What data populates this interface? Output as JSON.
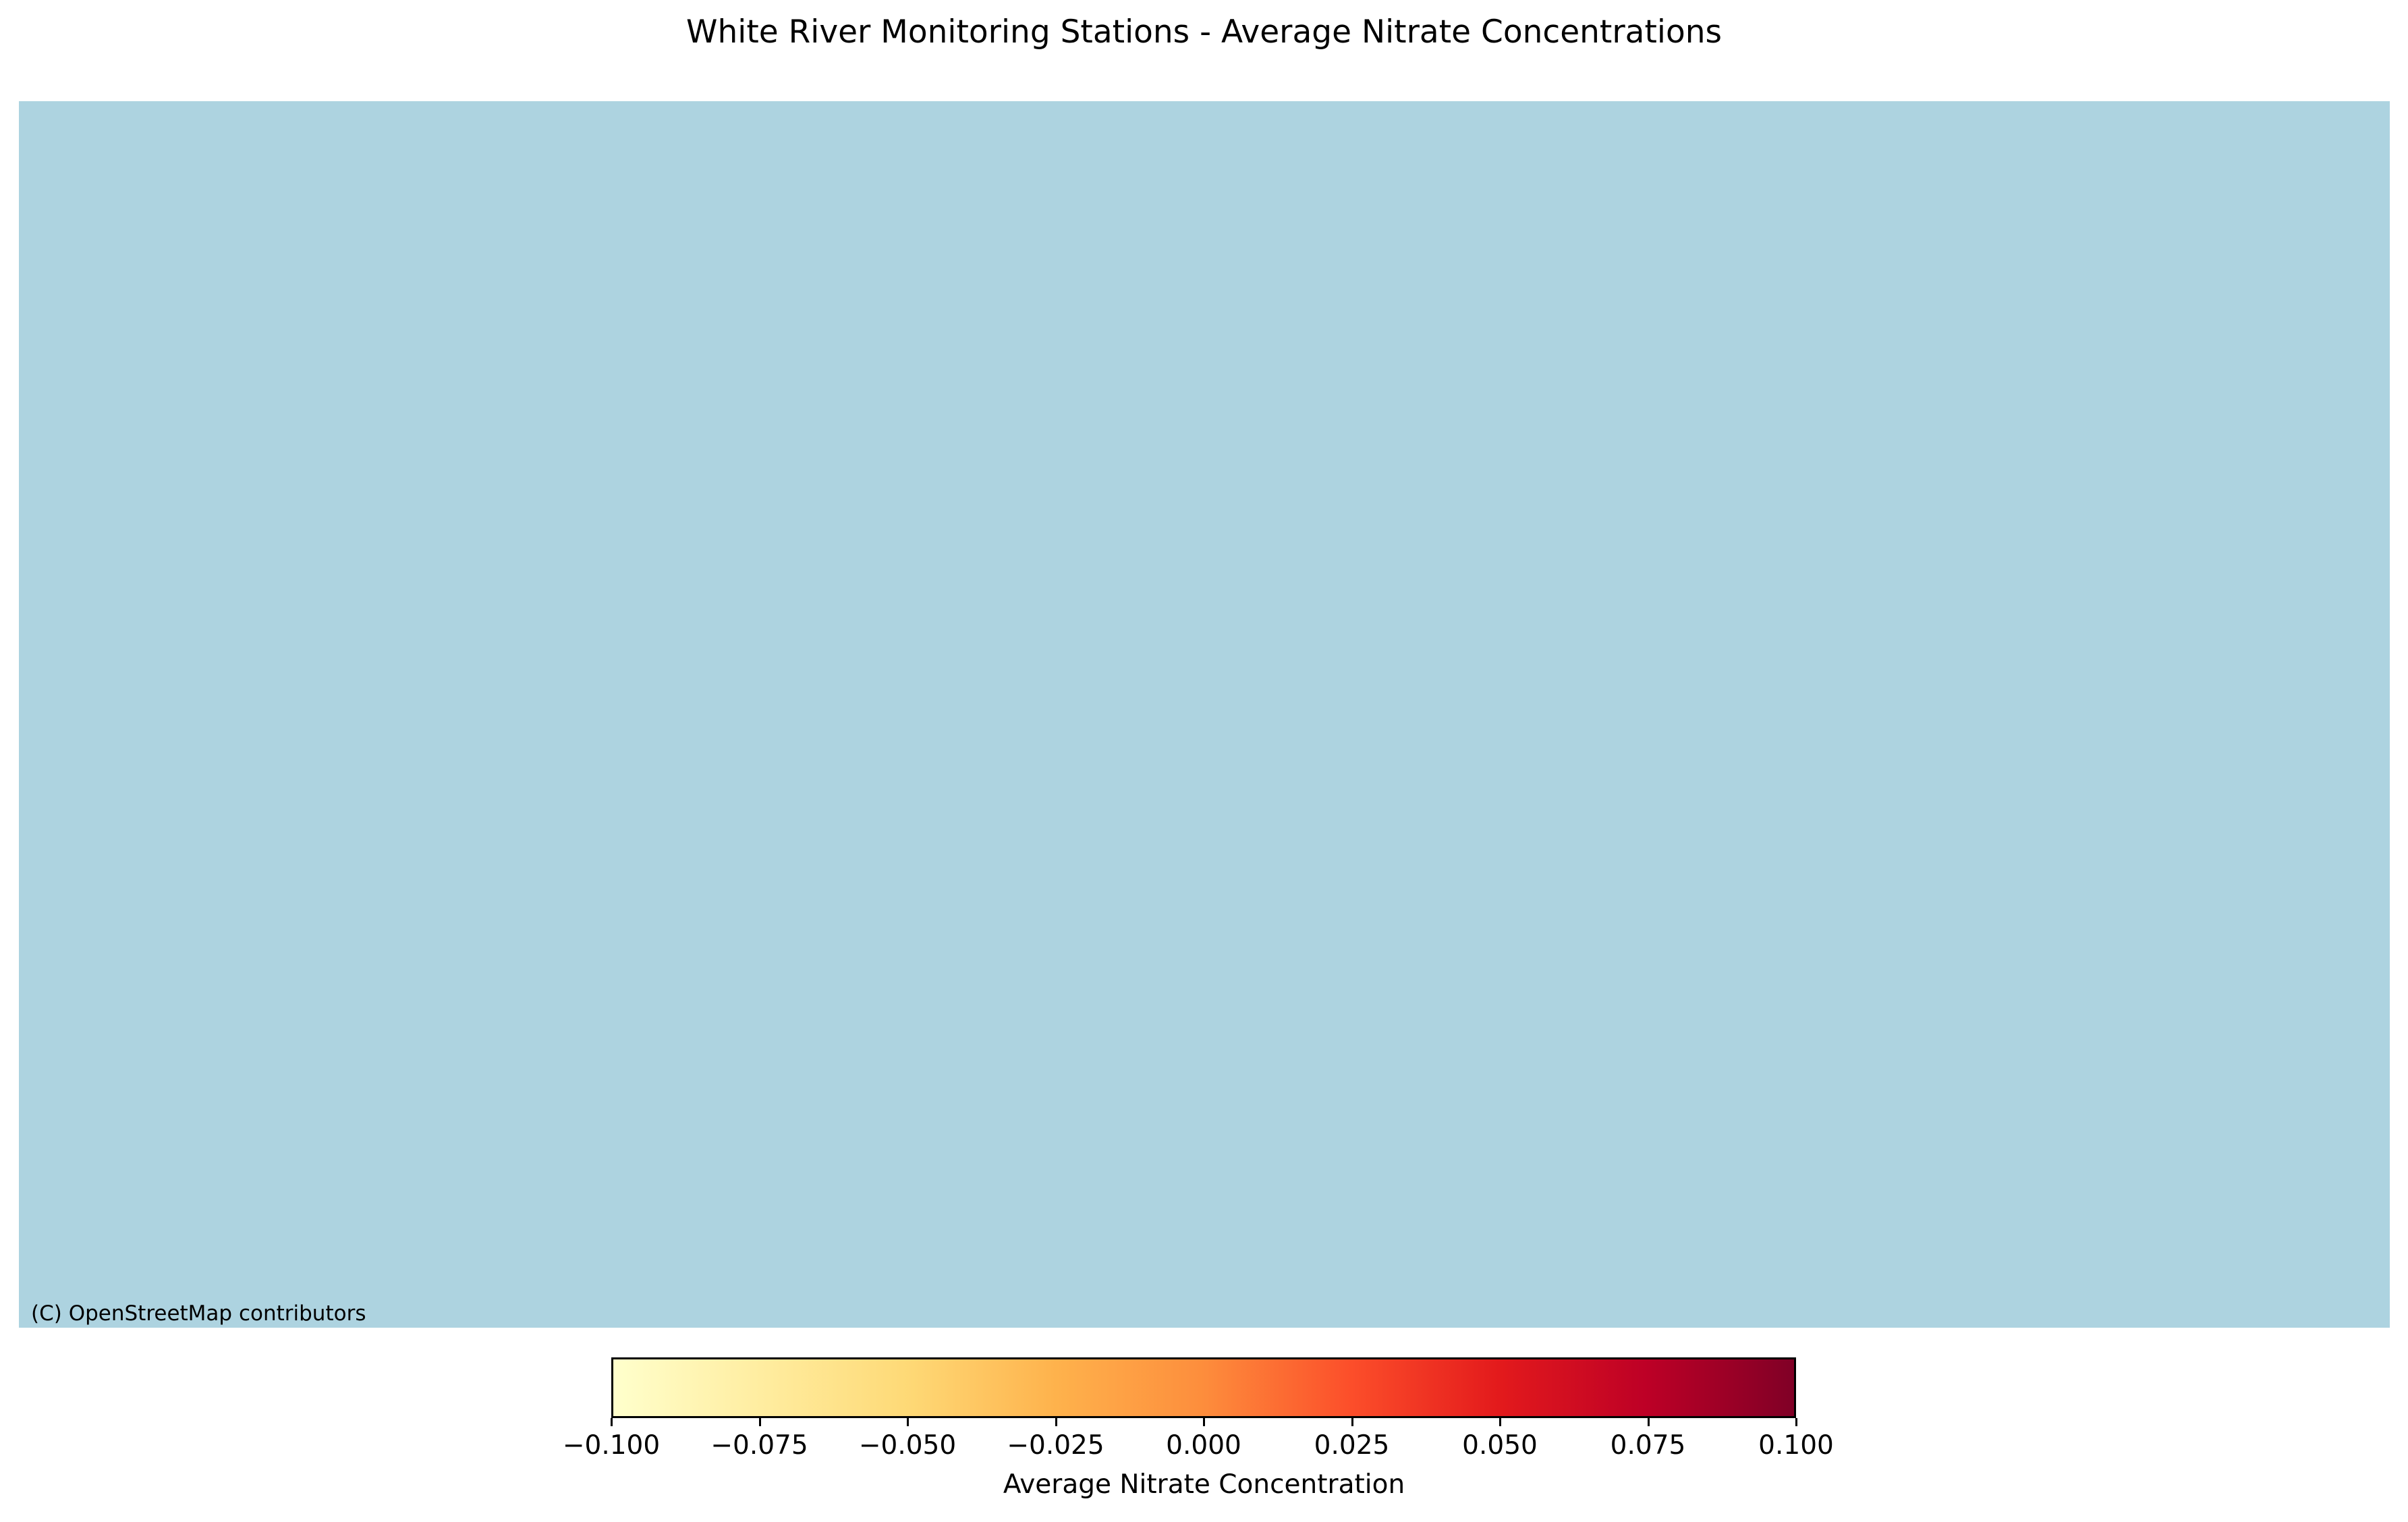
{
  "title": "White River Monitoring Stations - Average Nitrate Concentrations",
  "map": {
    "background_color": "#add3e0",
    "attribution": "(C) OpenStreetMap contributors"
  },
  "chart_data": {
    "type": "heatmap",
    "title": "White River Monitoring Stations - Average Nitrate Concentrations",
    "colorbar": {
      "label": "Average Nitrate Concentration",
      "range": [
        -0.1,
        0.1
      ],
      "colormap": "YlOrRd",
      "ticks": [
        -0.1,
        -0.075,
        -0.05,
        -0.025,
        0.0,
        0.025,
        0.05,
        0.075,
        0.1
      ],
      "tick_labels": [
        "−0.100",
        "−0.075",
        "−0.050",
        "−0.025",
        "0.000",
        "0.025",
        "0.050",
        "0.075",
        "0.100"
      ],
      "orientation": "horizontal",
      "placement": "bottom"
    },
    "stations": []
  }
}
